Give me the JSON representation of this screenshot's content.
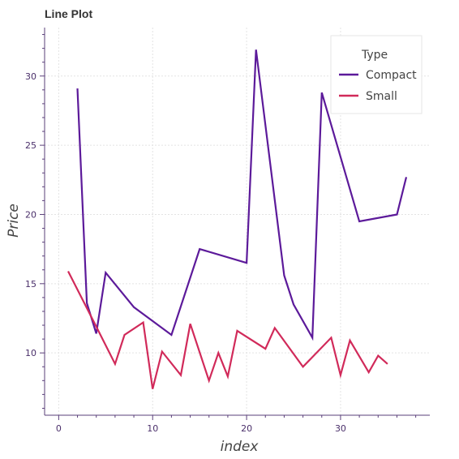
{
  "chart_data": {
    "type": "line",
    "title": "Line Plot",
    "xlabel": "index",
    "ylabel": "Price",
    "xlim": [
      -1.5,
      39.5
    ],
    "ylim": [
      5.5,
      33.5
    ],
    "xticks": [
      0,
      10,
      20,
      30
    ],
    "yticks": [
      10,
      15,
      20,
      25,
      30
    ],
    "grid": true,
    "legend": {
      "title": "Type",
      "position": "top-right"
    },
    "series": [
      {
        "name": "Compact",
        "color": "#5c1a9a",
        "points": [
          [
            2,
            29.1
          ],
          [
            3,
            13.6
          ],
          [
            4,
            11.4
          ],
          [
            5,
            15.8
          ],
          [
            8,
            13.3
          ],
          [
            12,
            11.3
          ],
          [
            15,
            17.5
          ],
          [
            20,
            16.5
          ],
          [
            21,
            31.9
          ],
          [
            24,
            15.6
          ],
          [
            25,
            13.5
          ],
          [
            27,
            11.1
          ],
          [
            28,
            28.8
          ],
          [
            32,
            19.5
          ],
          [
            36,
            20.0
          ],
          [
            37,
            22.7
          ]
        ]
      },
      {
        "name": "Small",
        "color": "#d12a5a",
        "points": [
          [
            1,
            15.9
          ],
          [
            4,
            11.9
          ],
          [
            6,
            9.2
          ],
          [
            7,
            11.3
          ],
          [
            9,
            12.2
          ],
          [
            10,
            7.4
          ],
          [
            11,
            10.1
          ],
          [
            13,
            8.4
          ],
          [
            14,
            12.1
          ],
          [
            16,
            8.0
          ],
          [
            17,
            10.0
          ],
          [
            18,
            8.3
          ],
          [
            19,
            11.6
          ],
          [
            22,
            10.3
          ],
          [
            23,
            11.8
          ],
          [
            26,
            9.0
          ],
          [
            29,
            11.1
          ],
          [
            30,
            8.4
          ],
          [
            31,
            10.9
          ],
          [
            33,
            8.6
          ],
          [
            34,
            9.8
          ],
          [
            35,
            9.2
          ]
        ]
      }
    ]
  }
}
